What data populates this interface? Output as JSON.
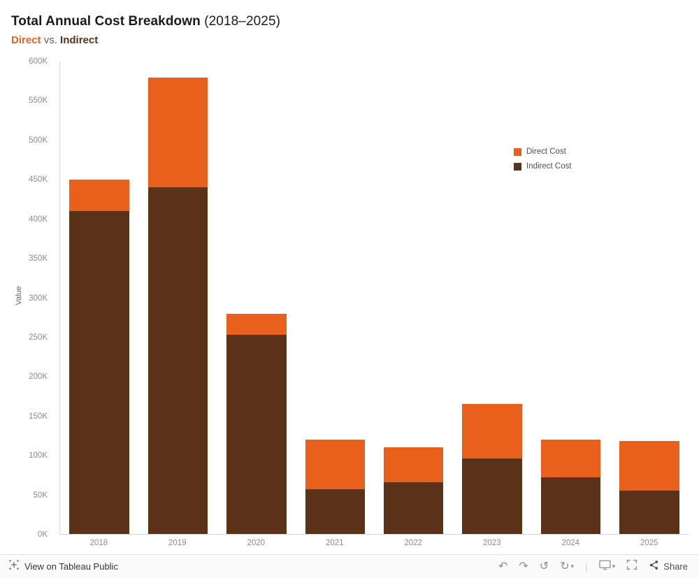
{
  "colors": {
    "direct": "#E8601B",
    "indirect": "#5B3118",
    "axis_text": "#8b8b8b",
    "background": "#ffffff"
  },
  "header": {
    "title_main": "Total Annual Cost Breakdown",
    "title_suffix": " (2018–2025)",
    "subtitle_direct": "Direct",
    "subtitle_vs": " vs. ",
    "subtitle_indirect": "Indirect"
  },
  "chart_data": {
    "type": "bar",
    "stacked": true,
    "title": "Total Annual Cost Breakdown (2018–2025)",
    "subtitle": "Direct vs. Indirect",
    "categories": [
      "2018",
      "2019",
      "2020",
      "2021",
      "2022",
      "2023",
      "2024",
      "2025"
    ],
    "series": [
      {
        "name": "Indirect Cost",
        "color": "#5B3118",
        "values": [
          410000,
          440000,
          253000,
          57000,
          66000,
          96000,
          72000,
          55000
        ]
      },
      {
        "name": "Direct Cost",
        "color": "#E8601B",
        "values": [
          40000,
          140000,
          27000,
          63000,
          44000,
          69000,
          48000,
          63000
        ]
      }
    ],
    "xlabel": "",
    "ylabel": "Value",
    "ylim": [
      0,
      600000
    ],
    "ytick_step": 50000,
    "ytick_labels": [
      "0K",
      "50K",
      "100K",
      "150K",
      "200K",
      "250K",
      "300K",
      "350K",
      "400K",
      "450K",
      "500K",
      "550K",
      "600K"
    ],
    "grid": false,
    "legend_position": "right",
    "legend": [
      {
        "label": "Direct Cost",
        "color": "#E8601B"
      },
      {
        "label": "Indirect Cost",
        "color": "#5B3118"
      }
    ]
  },
  "footer": {
    "view_label": "View on Tableau Public",
    "share_label": "Share",
    "icons": {
      "undo": "↶",
      "redo": "↷",
      "replay": "↺",
      "refresh": "↻",
      "caret": "▾",
      "separator": "|"
    }
  }
}
